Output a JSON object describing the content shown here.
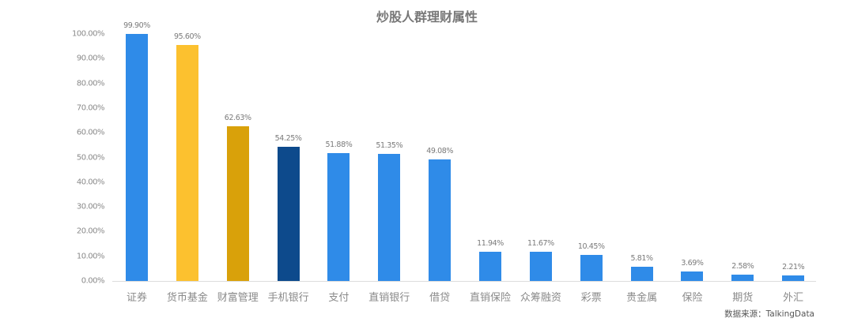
{
  "title": "炒股人群理财属性",
  "source": "数据来源：TalkingData",
  "colors": {
    "blue": "#2f8be8",
    "yellow": "#fcc12f",
    "gold": "#d9a10a",
    "navy": "#0d4a8c",
    "axis": "#dcdcdc",
    "text": "#8a8a8a"
  },
  "chart_data": {
    "type": "bar",
    "title": "炒股人群理财属性",
    "xlabel": "",
    "ylabel": "",
    "ylim": [
      0,
      100
    ],
    "yticks": [
      "0.00%",
      "10.00%",
      "20.00%",
      "30.00%",
      "40.00%",
      "50.00%",
      "60.00%",
      "70.00%",
      "80.00%",
      "90.00%",
      "100.00%"
    ],
    "grid": false,
    "legend": null,
    "categories": [
      "证券",
      "货币基金",
      "财富管理",
      "手机银行",
      "支付",
      "直销银行",
      "借贷",
      "直销保险",
      "众筹融资",
      "彩票",
      "贵金属",
      "保险",
      "期货",
      "外汇"
    ],
    "values": [
      99.9,
      95.6,
      62.63,
      54.25,
      51.88,
      51.35,
      49.08,
      11.94,
      11.67,
      10.45,
      5.81,
      3.69,
      2.58,
      2.21
    ],
    "value_labels": [
      "99.90%",
      "95.60%",
      "62.63%",
      "54.25%",
      "51.88%",
      "51.35%",
      "49.08%",
      "11.94%",
      "11.67%",
      "10.45%",
      "5.81%",
      "3.69%",
      "2.58%",
      "2.21%"
    ],
    "bar_colors": [
      "#2f8be8",
      "#fcc12f",
      "#d9a10a",
      "#0d4a8c",
      "#2f8be8",
      "#2f8be8",
      "#2f8be8",
      "#2f8be8",
      "#2f8be8",
      "#2f8be8",
      "#2f8be8",
      "#2f8be8",
      "#2f8be8",
      "#2f8be8"
    ],
    "annotations": [
      "数据来源：TalkingData"
    ]
  }
}
